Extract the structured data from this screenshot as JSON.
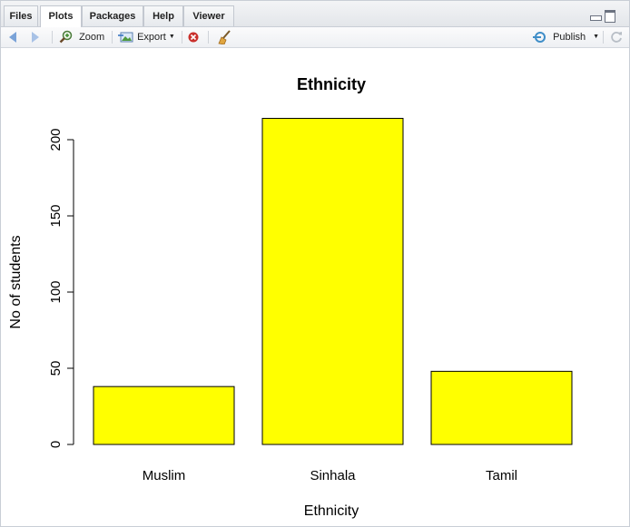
{
  "tabs": [
    {
      "label": "Files"
    },
    {
      "label": "Plots"
    },
    {
      "label": "Packages"
    },
    {
      "label": "Help"
    },
    {
      "label": "Viewer"
    }
  ],
  "toolbar": {
    "zoom_label": "Zoom",
    "export_label": "Export",
    "publish_label": "Publish"
  },
  "chart_data": {
    "type": "bar",
    "title": "Ethnicity",
    "xlabel": "Ethnicity",
    "ylabel": "No of students",
    "categories": [
      "Muslim",
      "Sinhala",
      "Tamil"
    ],
    "values": [
      38,
      214,
      48
    ],
    "ylim": [
      0,
      200
    ],
    "yticks": [
      0,
      50,
      100,
      150,
      200
    ],
    "bar_color": "#ffff00",
    "bar_border": "#000000",
    "grid": false,
    "legend": "none"
  }
}
